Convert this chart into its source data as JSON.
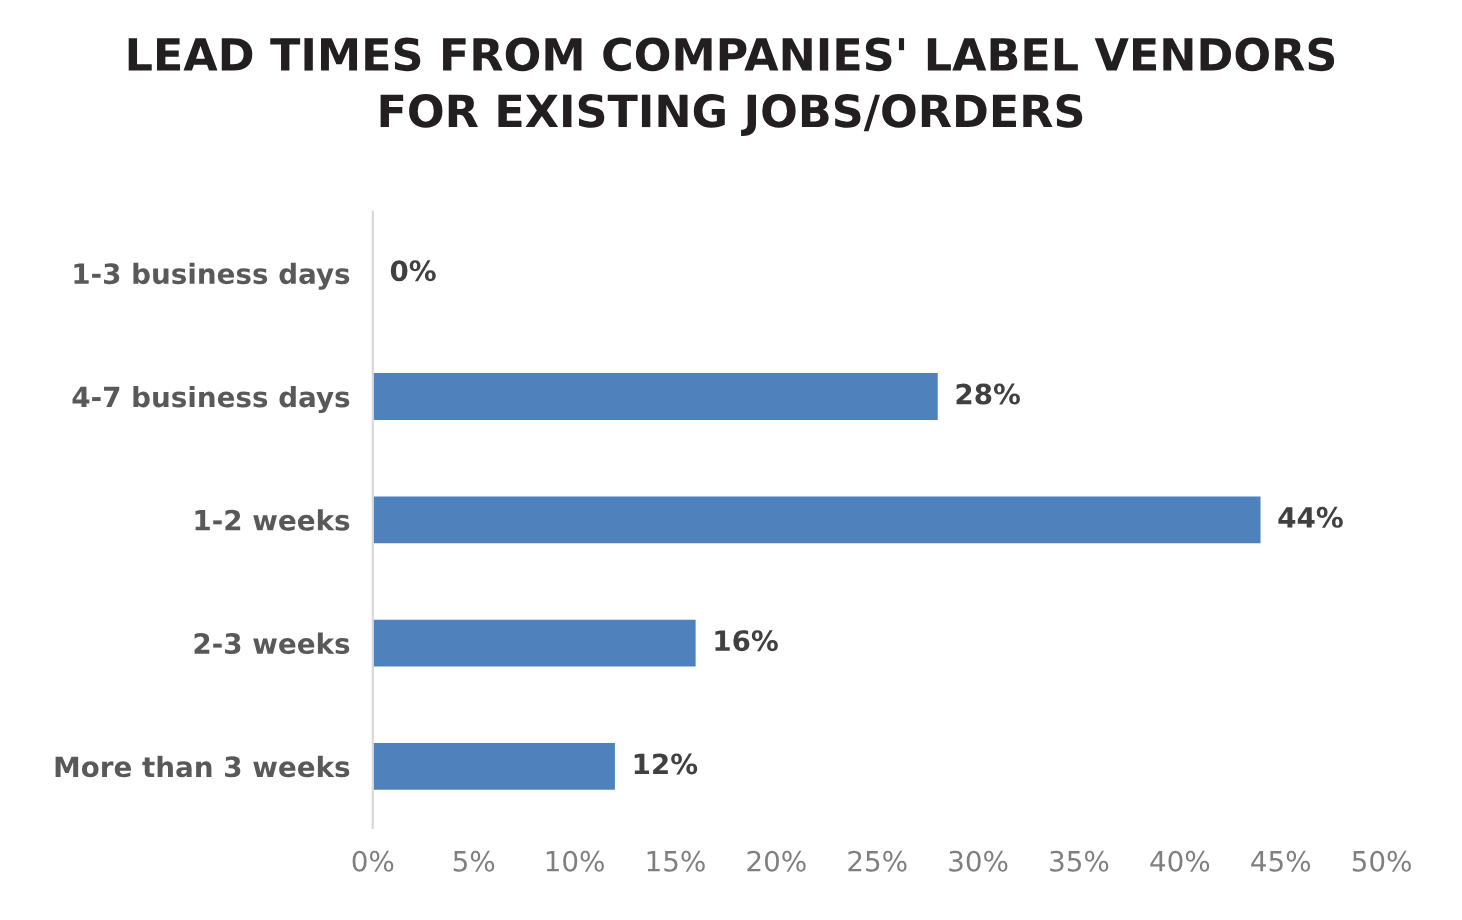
{
  "chart_data": {
    "type": "bar",
    "orientation": "horizontal",
    "title": "LEAD TIMES FROM COMPANIES' LABEL VENDORS\nFOR EXISTING JOBS/ORDERS",
    "categories": [
      "1-3 business days",
      "4-7 business days",
      "1-2 weeks",
      "2-3 weeks",
      "More than 3 weeks"
    ],
    "values": [
      0,
      28,
      44,
      16,
      12
    ],
    "color": "#4f81bd",
    "value_labels": [
      "0%",
      "28%",
      "44%",
      "16%",
      "12%"
    ],
    "xlim": [
      0,
      50
    ],
    "xticks": [
      {
        "value": 0,
        "label": "0%"
      },
      {
        "value": 5,
        "label": "5%"
      },
      {
        "value": 10,
        "label": "10%"
      },
      {
        "value": 15,
        "label": "15%"
      },
      {
        "value": 20,
        "label": "20%"
      },
      {
        "value": 25,
        "label": "25%"
      },
      {
        "value": 30,
        "label": "30%"
      },
      {
        "value": 35,
        "label": "35%"
      },
      {
        "value": 40,
        "label": "40%"
      },
      {
        "value": 45,
        "label": "45%"
      },
      {
        "value": 50,
        "label": "50%"
      }
    ],
    "grid": false,
    "legend": false
  }
}
